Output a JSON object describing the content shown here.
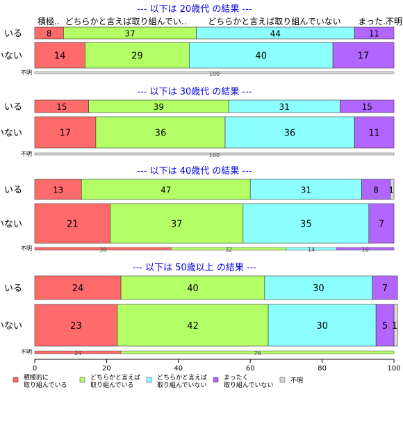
{
  "chart_data": {
    "type": "bar",
    "orientation": "horizontal",
    "stacked": true,
    "xlim": [
      0,
      100
    ],
    "x_ticks": [
      0,
      20,
      40,
      60,
      80,
      100
    ],
    "column_headers": [
      "積極..",
      "どちらかと言えば取り組んでい..",
      "どちらかと言えば取り組んでいない",
      "まった..",
      "不明"
    ],
    "series_colors": [
      "#ff6a6a",
      "#b3ff66",
      "#8cffff",
      "#b366ff",
      "#d9d9d9"
    ],
    "legend": [
      {
        "lines": [
          "積極的に",
          "取り組んでいる"
        ]
      },
      {
        "lines": [
          "どちらかと言えば",
          "取り組んでいる"
        ]
      },
      {
        "lines": [
          "どちらかと言えば",
          "取り組んでいない"
        ]
      },
      {
        "lines": [
          "まったく",
          "取り組んでいない"
        ]
      },
      {
        "lines": [
          "不明"
        ]
      }
    ],
    "groups": [
      {
        "title": "--- 以下は 20歳代 の結果 ---",
        "rows": [
          {
            "label": "いる",
            "values": [
              8,
              37,
              44,
              11,
              0
            ]
          },
          {
            "label": "いない",
            "values": [
              14,
              29,
              40,
              17,
              0
            ]
          }
        ],
        "unknown": {
          "label": "不明",
          "values": [
            0,
            0,
            0,
            0,
            100
          ]
        }
      },
      {
        "title": "--- 以下は 30歳代 の結果 ---",
        "rows": [
          {
            "label": "いる",
            "values": [
              15,
              39,
              31,
              15,
              0
            ]
          },
          {
            "label": "いない",
            "values": [
              17,
              36,
              36,
              11,
              0
            ]
          }
        ],
        "unknown": {
          "label": "不明",
          "values": [
            0,
            0,
            0,
            0,
            100
          ]
        }
      },
      {
        "title": "--- 以下は 40歳代 の結果 ---",
        "rows": [
          {
            "label": "いる",
            "values": [
              13,
              47,
              31,
              8,
              1
            ]
          },
          {
            "label": "いない",
            "values": [
              21,
              37,
              35,
              7,
              0
            ]
          }
        ],
        "unknown": {
          "label": "不明",
          "values": [
            38,
            32,
            14,
            16,
            0
          ]
        }
      },
      {
        "title": "--- 以下は 50歳以上 の結果 ---",
        "rows": [
          {
            "label": "いる",
            "values": [
              24,
              40,
              30,
              7,
              0
            ]
          },
          {
            "label": "いない",
            "values": [
              23,
              42,
              30,
              5,
              1
            ]
          }
        ],
        "unknown": {
          "label": "不明",
          "values": [
            24,
            76,
            0,
            0,
            0
          ]
        }
      }
    ]
  }
}
